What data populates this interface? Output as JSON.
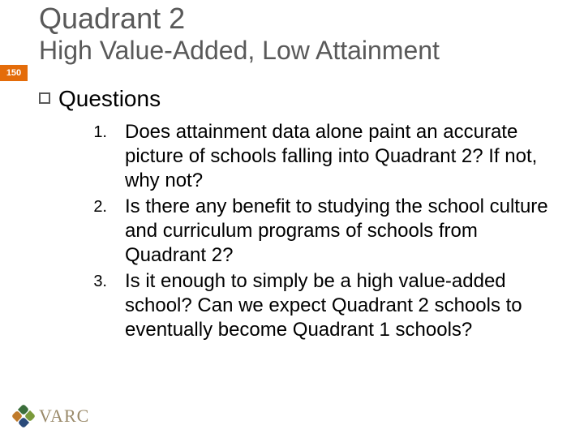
{
  "slide": {
    "title_line1": "Quadrant 2",
    "title_line2": "High Value-Added, Low Attainment",
    "page_number": "150",
    "section_title": "Questions",
    "questions": [
      {
        "num": "1.",
        "text": "Does attainment data alone paint an accurate picture of schools falling into Quadrant 2? If not, why not?"
      },
      {
        "num": "2.",
        "text": "Is there any benefit to studying the school culture and curriculum programs of schools from Quadrant 2?"
      },
      {
        "num": "3.",
        "text": "Is it enough to simply be a high value-added school? Can we expect Quadrant 2 schools to eventually become Quadrant 1 schools?"
      }
    ],
    "logo_text": "VARC"
  },
  "colors": {
    "title_color": "#595959",
    "badge_bg": "#e46c0a",
    "badge_fg": "#ffffff",
    "body_text": "#000000",
    "background": "#ffffff",
    "logo_text_color": "#9a8a6a"
  },
  "typography": {
    "title1_fontsize": 36,
    "title2_fontsize": 32,
    "section_fontsize": 28,
    "body_fontsize": 24,
    "num_fontsize": 20,
    "badge_fontsize": 11,
    "logo_fontsize": 22
  }
}
